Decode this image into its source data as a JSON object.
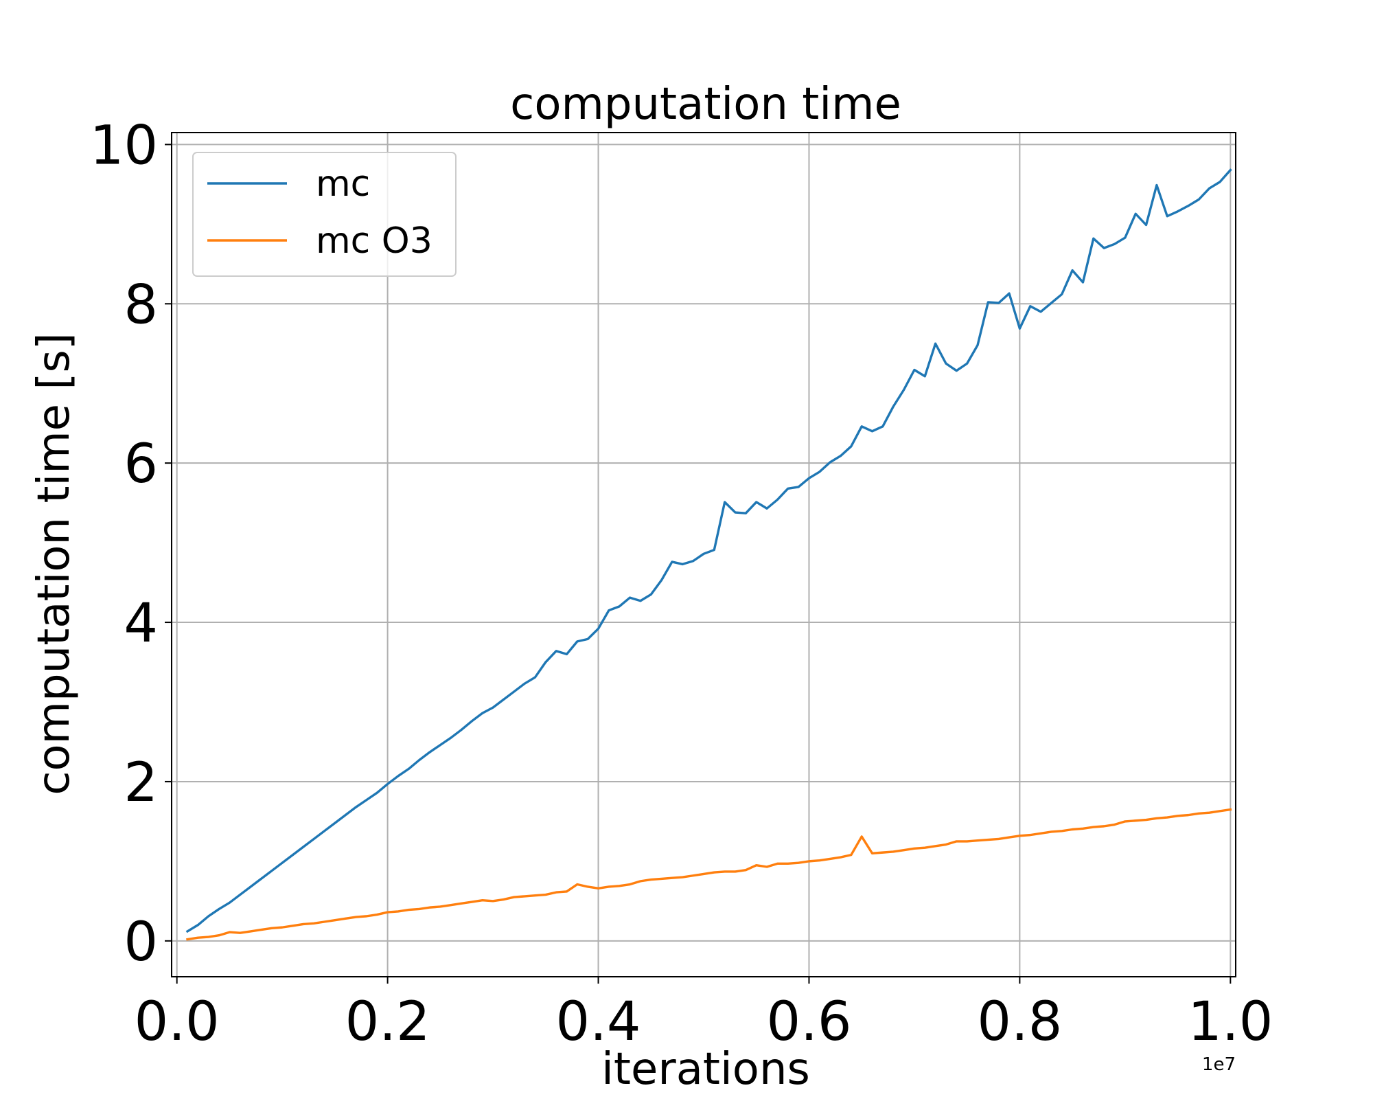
{
  "chart_data": {
    "type": "line",
    "title": "computation time",
    "xlabel": "iterations",
    "ylabel": "computation time [s]",
    "x_offset_label": "1e7",
    "xlim": [
      -0.005,
      1.005
    ],
    "ylim": [
      -0.45,
      10.15
    ],
    "x_ticks": [
      0.0,
      0.2,
      0.4,
      0.6,
      0.8,
      1.0
    ],
    "x_tick_labels": [
      "0.0",
      "0.2",
      "0.4",
      "0.6",
      "0.8",
      "1.0"
    ],
    "y_ticks": [
      0,
      2,
      4,
      6,
      8,
      10
    ],
    "y_tick_labels": [
      "0",
      "2",
      "4",
      "6",
      "8",
      "10"
    ],
    "grid": true,
    "legend_position": "top-left",
    "x": [
      0.01,
      0.02,
      0.03,
      0.04,
      0.05,
      0.06,
      0.07,
      0.08,
      0.09,
      0.1,
      0.11,
      0.12,
      0.13,
      0.14,
      0.15,
      0.16,
      0.17,
      0.18,
      0.19,
      0.2,
      0.21,
      0.22,
      0.23,
      0.24,
      0.25,
      0.26,
      0.27,
      0.28,
      0.29,
      0.3,
      0.31,
      0.32,
      0.33,
      0.34,
      0.35,
      0.36,
      0.37,
      0.38,
      0.39,
      0.4,
      0.41,
      0.42,
      0.43,
      0.44,
      0.45,
      0.46,
      0.47,
      0.48,
      0.49,
      0.5,
      0.51,
      0.52,
      0.53,
      0.54,
      0.55,
      0.56,
      0.57,
      0.58,
      0.59,
      0.6,
      0.61,
      0.62,
      0.63,
      0.64,
      0.65,
      0.66,
      0.67,
      0.68,
      0.69,
      0.7,
      0.71,
      0.72,
      0.73,
      0.74,
      0.75,
      0.76,
      0.77,
      0.78,
      0.79,
      0.8,
      0.81,
      0.82,
      0.83,
      0.84,
      0.85,
      0.86,
      0.87,
      0.88,
      0.89,
      0.9,
      0.91,
      0.92,
      0.93,
      0.94,
      0.95,
      0.96,
      0.97,
      0.98,
      0.99,
      1.0
    ],
    "series": [
      {
        "name": "mc",
        "color": "#1f77b4",
        "values": [
          0.12,
          0.2,
          0.31,
          0.4,
          0.48,
          0.58,
          0.68,
          0.78,
          0.88,
          0.98,
          1.08,
          1.18,
          1.28,
          1.38,
          1.48,
          1.58,
          1.68,
          1.77,
          1.86,
          1.97,
          2.07,
          2.16,
          2.27,
          2.37,
          2.46,
          2.55,
          2.65,
          2.76,
          2.86,
          2.93,
          3.03,
          3.13,
          3.23,
          3.31,
          3.5,
          3.64,
          3.6,
          3.76,
          3.79,
          3.92,
          4.15,
          4.2,
          4.31,
          4.27,
          4.35,
          4.53,
          4.76,
          4.73,
          4.77,
          4.86,
          4.91,
          5.51,
          5.38,
          5.37,
          5.51,
          5.43,
          5.54,
          5.68,
          5.7,
          5.81,
          5.89,
          6.01,
          6.09,
          6.21,
          6.46,
          6.4,
          6.46,
          6.71,
          6.92,
          7.17,
          7.09,
          7.5,
          7.25,
          7.16,
          7.25,
          7.48,
          8.02,
          8.01,
          8.13,
          7.69,
          7.97,
          7.9,
          8.01,
          8.12,
          8.42,
          8.27,
          8.82,
          8.7,
          8.75,
          8.83,
          9.13,
          8.99,
          9.49,
          9.1,
          9.16,
          9.23,
          9.31,
          9.45,
          9.53,
          9.68
        ]
      },
      {
        "name": "mc O3",
        "color": "#ff7f0e",
        "values": [
          0.02,
          0.04,
          0.05,
          0.07,
          0.11,
          0.1,
          0.12,
          0.14,
          0.16,
          0.17,
          0.19,
          0.21,
          0.22,
          0.24,
          0.26,
          0.28,
          0.3,
          0.31,
          0.33,
          0.36,
          0.37,
          0.39,
          0.4,
          0.42,
          0.43,
          0.45,
          0.47,
          0.49,
          0.51,
          0.5,
          0.52,
          0.55,
          0.56,
          0.57,
          0.58,
          0.61,
          0.62,
          0.71,
          0.68,
          0.66,
          0.68,
          0.69,
          0.71,
          0.75,
          0.77,
          0.78,
          0.79,
          0.8,
          0.82,
          0.84,
          0.86,
          0.87,
          0.87,
          0.89,
          0.95,
          0.93,
          0.97,
          0.97,
          0.98,
          1.0,
          1.01,
          1.03,
          1.05,
          1.08,
          1.31,
          1.1,
          1.11,
          1.12,
          1.14,
          1.16,
          1.17,
          1.19,
          1.21,
          1.25,
          1.25,
          1.26,
          1.27,
          1.28,
          1.3,
          1.32,
          1.33,
          1.35,
          1.37,
          1.38,
          1.4,
          1.41,
          1.43,
          1.44,
          1.46,
          1.5,
          1.51,
          1.52,
          1.54,
          1.55,
          1.57,
          1.58,
          1.6,
          1.61,
          1.63,
          1.65
        ]
      }
    ]
  }
}
